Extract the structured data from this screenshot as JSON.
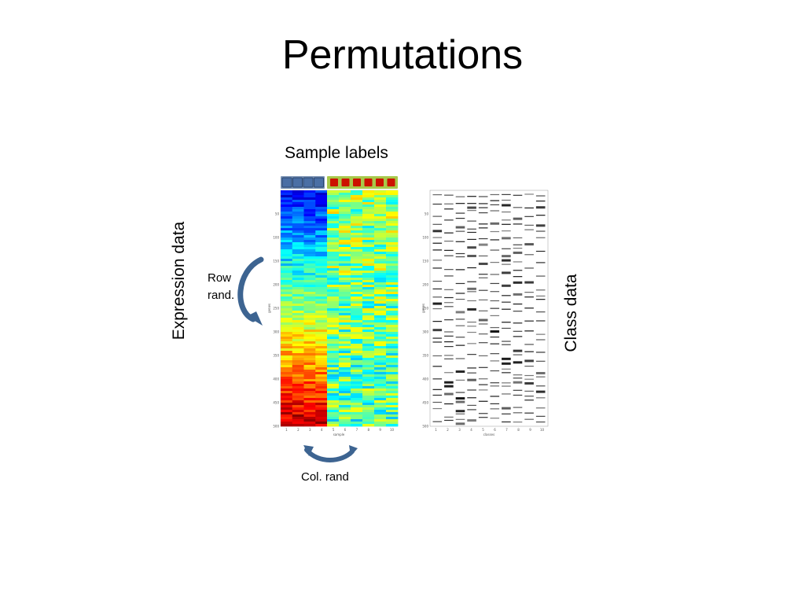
{
  "slide": {
    "title": "Permutations"
  },
  "labels": {
    "sample_labels": "Sample labels",
    "expression_data": "Expression data",
    "class_data": "Class data",
    "row_rand_line1": "Row",
    "row_rand_line2": "rand.",
    "col_rand": "Col. rand"
  },
  "sample_strip": {
    "group_a_count": 4,
    "group_b_count": 6,
    "group_a_color": "#4a6fa5",
    "group_b_color": "#cc1100",
    "group_b_frame": "#a8c84a"
  },
  "heatmap": {
    "rows": 500,
    "columns": 10,
    "xlabel": "sample",
    "ylabel": "genes",
    "x_ticks": [
      "1",
      "2",
      "3",
      "4",
      "5",
      "6",
      "7",
      "8",
      "9",
      "10"
    ],
    "y_ticks": [
      "50",
      "100",
      "150",
      "200",
      "250",
      "300",
      "350",
      "400",
      "450",
      "500"
    ]
  },
  "class_matrix": {
    "rows": 500,
    "columns": 10,
    "xlabel": "classes",
    "ylabel": "genes",
    "x_ticks": [
      "1",
      "2",
      "3",
      "4",
      "5",
      "6",
      "7",
      "8",
      "9",
      "10"
    ],
    "y_ticks": [
      "50",
      "100",
      "150",
      "200",
      "250",
      "300",
      "350",
      "400",
      "450",
      "500"
    ]
  },
  "arrow_color": "#3d6491"
}
